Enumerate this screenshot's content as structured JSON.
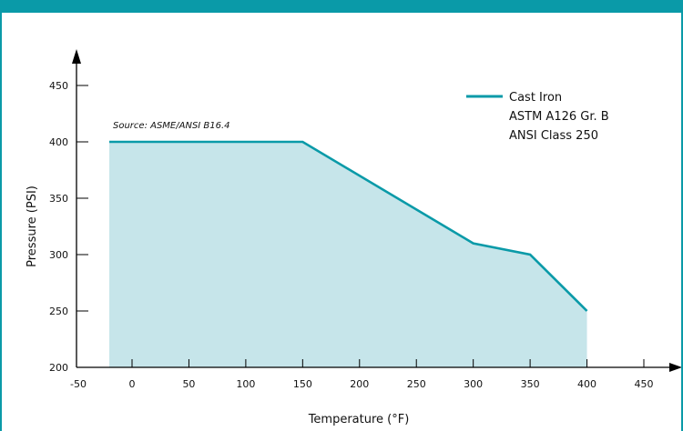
{
  "chart_data": {
    "type": "area",
    "source_note": "Source: ASME/ANSI B16.4",
    "xlabel": "Temperature (°F)",
    "ylabel": "Pressure (PSI)",
    "xlim": [
      -50,
      450
    ],
    "ylim": [
      200,
      450
    ],
    "x_ticks": [
      -50,
      0,
      50,
      100,
      150,
      200,
      250,
      300,
      350,
      400,
      450
    ],
    "y_ticks": [
      200,
      250,
      300,
      350,
      400,
      450
    ],
    "legend": [
      "Cast Iron",
      "ASTM A126 Gr. B",
      "ANSI Class 250"
    ],
    "legend_position": "top-right",
    "series": [
      {
        "name": "Cast Iron ASTM A126 Gr. B ANSI Class 250",
        "x": [
          -20,
          150,
          300,
          350,
          400
        ],
        "y": [
          400,
          400,
          310,
          300,
          250
        ]
      }
    ]
  },
  "colors": {
    "line": "#0a9aa8",
    "fill": "#c6e5ea",
    "border": "#0a9aa8",
    "axis": "#000000"
  }
}
